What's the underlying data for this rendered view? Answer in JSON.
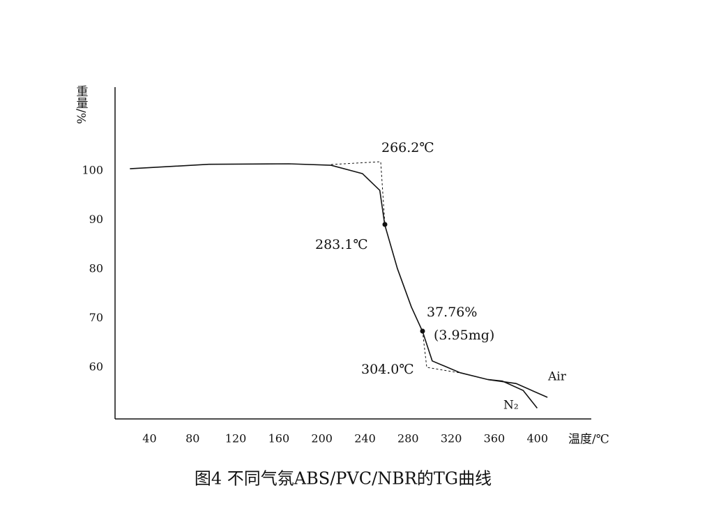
{
  "chart_data": {
    "type": "line",
    "title": "图4 不同气氛ABS/PVC/NBR的TG曲线",
    "x_label": "温度/℃",
    "y_label": "重量/%",
    "xlim": [
      8,
      450
    ],
    "ylim": [
      49.5,
      117
    ],
    "xticks": [
      40,
      80,
      120,
      160,
      200,
      240,
      280,
      320,
      360,
      400
    ],
    "yticks": [
      60,
      70,
      80,
      90,
      100
    ],
    "annotations": [
      "266.2℃",
      "283.1℃",
      "37.76%",
      "(3.95mg)",
      "304.0℃"
    ],
    "series": [
      {
        "name": "Air",
        "color": "#111111",
        "x": [
          21.8,
          95,
          169.5,
          208.4,
          237.6,
          253.7,
          258.3,
          270,
          283,
          293.4,
          302.4,
          328.3,
          354.3,
          380.2,
          409.3
        ],
        "values": [
          100.4,
          101.3,
          101.4,
          101.1,
          99.4,
          96.0,
          89.0,
          80.1,
          72.3,
          67.3,
          61.3,
          58.9,
          57.5,
          56.7,
          53.9
        ]
      },
      {
        "name": "N₂",
        "color": "#111111",
        "x": [
          354.3,
          367.4,
          386.8,
          399.8
        ],
        "values": [
          57.5,
          57.2,
          55.3,
          51.7
        ]
      }
    ]
  }
}
